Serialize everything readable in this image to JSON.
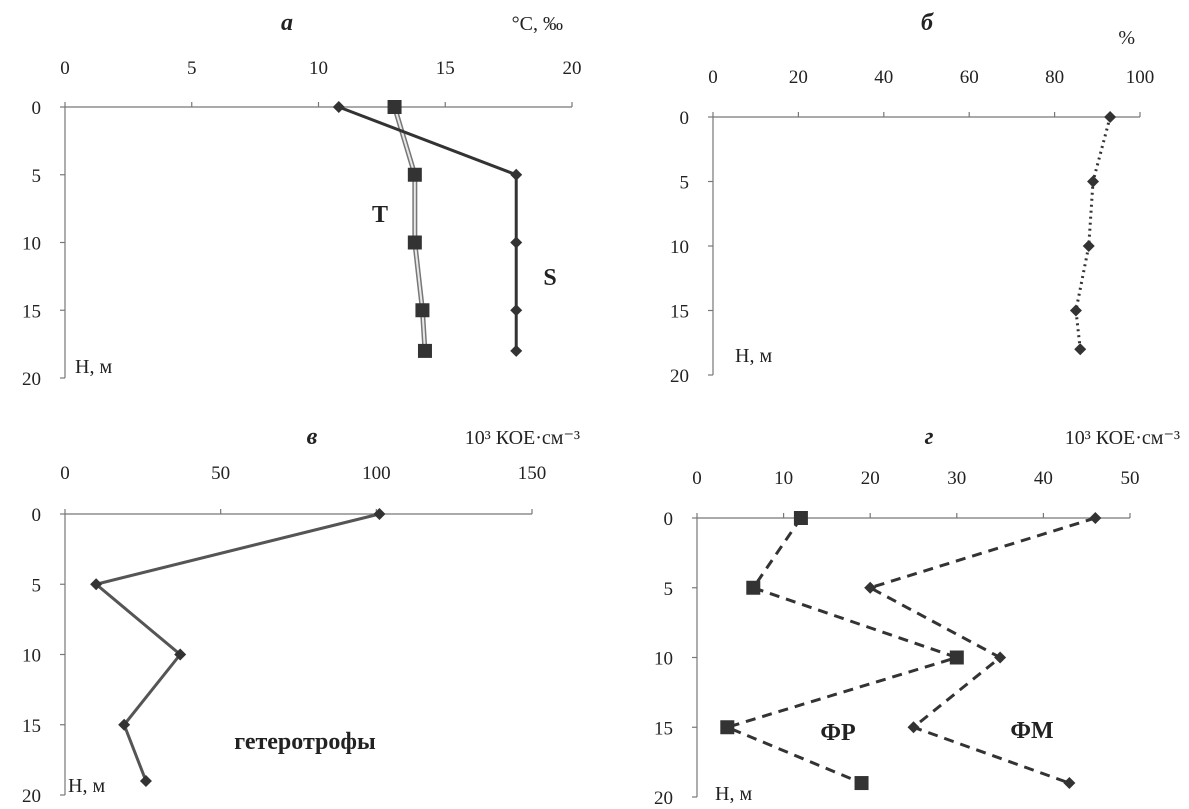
{
  "chart_data": [
    {
      "type": "line",
      "title": "а",
      "unit": "°C, ‰",
      "ylabel": "Н,  м",
      "x_ticks": [
        0,
        5,
        10,
        15,
        20
      ],
      "y_ticks": [
        0,
        5,
        10,
        15,
        20
      ],
      "xlim": [
        0,
        20
      ],
      "ylim": [
        0,
        20
      ],
      "x_axis_position": "top",
      "y_inverted": true,
      "series": [
        {
          "name": "T",
          "color": "#888888",
          "marker": "square",
          "style": "solid",
          "x": [
            13,
            13.8,
            13.8,
            14.1,
            14.2
          ],
          "depth": [
            0,
            5,
            10,
            15,
            18
          ]
        },
        {
          "name": "S",
          "color": "#333333",
          "marker": "diamond",
          "style": "solid",
          "x": [
            10.8,
            17.8,
            17.8,
            17.8,
            17.8
          ],
          "depth": [
            0,
            5,
            10,
            15,
            18
          ]
        }
      ]
    },
    {
      "type": "line",
      "title": "б",
      "unit": "%",
      "ylabel": "Н, м",
      "x_ticks": [
        0,
        20,
        40,
        60,
        80,
        100
      ],
      "y_ticks": [
        0,
        5,
        10,
        15,
        20
      ],
      "xlim": [
        0,
        100
      ],
      "ylim": [
        0,
        20
      ],
      "x_axis_position": "top",
      "y_inverted": true,
      "series": [
        {
          "name": "",
          "color": "#333333",
          "marker": "diamond",
          "style": "dotted",
          "x": [
            93,
            89,
            88,
            85,
            86
          ],
          "depth": [
            0,
            5,
            10,
            15,
            18
          ]
        }
      ]
    },
    {
      "type": "line",
      "title": "в",
      "unit": "10³ КОЕ·см⁻³",
      "ylabel": "Н, м",
      "x_ticks": [
        0,
        50,
        100,
        150
      ],
      "y_ticks": [
        0,
        5,
        10,
        15,
        20
      ],
      "xlim": [
        0,
        150
      ],
      "ylim": [
        0,
        20
      ],
      "x_axis_position": "top",
      "y_inverted": true,
      "series": [
        {
          "name": "гетеротрофы",
          "color": "#555555",
          "marker": "diamond",
          "style": "solid",
          "x": [
            101,
            10,
            37,
            19,
            26
          ],
          "depth": [
            0,
            5,
            10,
            15,
            19
          ]
        }
      ]
    },
    {
      "type": "line",
      "title": "г",
      "unit": "10³ КОЕ·см⁻³",
      "ylabel": "Н, м",
      "x_ticks": [
        0,
        10,
        20,
        30,
        40,
        50
      ],
      "y_ticks": [
        0,
        5,
        10,
        15,
        20
      ],
      "xlim": [
        0,
        50
      ],
      "ylim": [
        0,
        20
      ],
      "x_axis_position": "top",
      "y_inverted": true,
      "series": [
        {
          "name": "ФР",
          "color": "#333333",
          "marker": "square",
          "style": "dashed",
          "x": [
            12,
            6.5,
            30,
            3.5,
            19
          ],
          "depth": [
            0,
            5,
            10,
            15,
            19
          ]
        },
        {
          "name": "ФМ",
          "color": "#333333",
          "marker": "diamond",
          "style": "dashed",
          "x": [
            46,
            20,
            35,
            25,
            43
          ],
          "depth": [
            0,
            5,
            10,
            15,
            19
          ]
        }
      ]
    }
  ]
}
